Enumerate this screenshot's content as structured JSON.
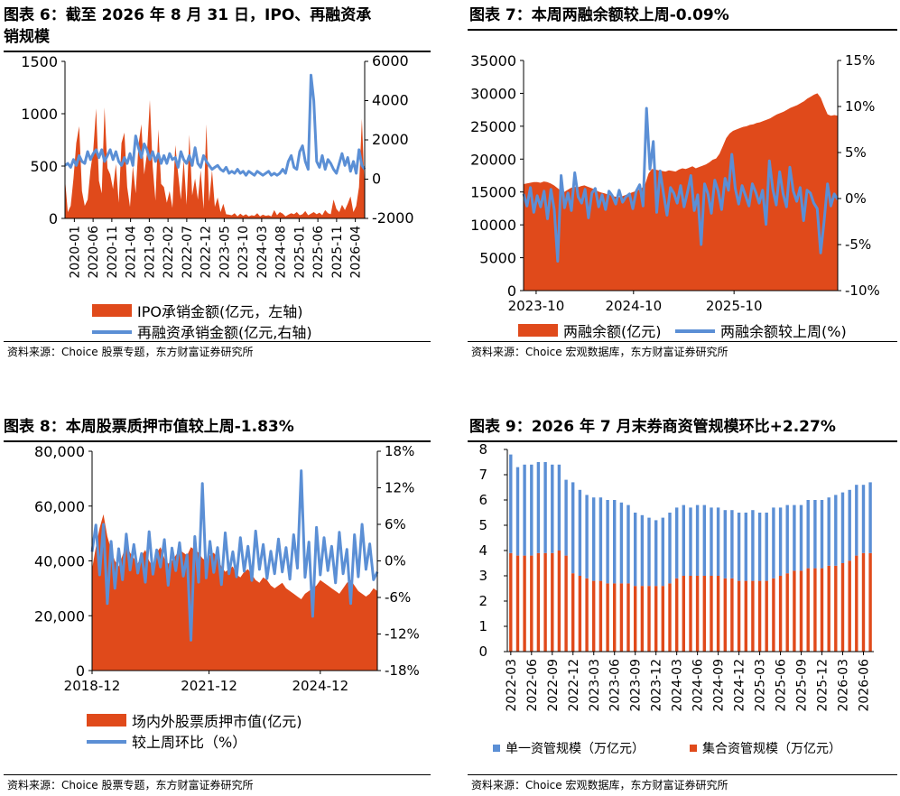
{
  "colors": {
    "area": "#E04A1B",
    "line": "#5B8FD5",
    "ink": "#000000"
  },
  "source_a": "资料来源：Choice 股票专题，东方财富证券研究所",
  "source_b": "资料来源：Choice 宏观数据库，东方财富证券研究所",
  "chart_data": [
    {
      "id": "chart6",
      "type": "area",
      "title": "图表 6：截至 2026 年 8 月 31 日，IPO、再融资承销规模",
      "title_line1": "图表 6：截至 2026 年 8 月 31 日，IPO、再融资承",
      "title_line2": "销规模",
      "x_ticks": [
        "2020-01",
        "2020-06",
        "2020-11",
        "2021-04",
        "2021-09",
        "2022-02",
        "2022-07",
        "2022-12",
        "2023-05",
        "2023-10",
        "2024-03",
        "2024-08",
        "2025-01",
        "2025-06",
        "2025-11",
        "2026-04"
      ],
      "ylim_left": [
        0,
        1500
      ],
      "yticks_left": [
        "0",
        "500",
        "1000",
        "1500"
      ],
      "ylim_right": [
        -2000,
        6000
      ],
      "yticks_right": [
        "-2000",
        "0",
        "2000",
        "4000",
        "6000"
      ],
      "series": [
        {
          "name": "IPO承销金额(亿元，左轴)",
          "axis": "left",
          "kind": "area",
          "values": [
            380,
            60,
            120,
            380,
            720,
            880,
            260,
            120,
            180,
            460,
            650,
            1050,
            360,
            240,
            1060,
            480,
            420,
            280,
            520,
            150,
            720,
            820,
            300,
            110,
            500,
            240,
            700,
            900,
            420,
            620,
            1130,
            500,
            170,
            850,
            330,
            300,
            150,
            260,
            100,
            700,
            430,
            180,
            560,
            130,
            800,
            220,
            380,
            180,
            460,
            90,
            900,
            160,
            460,
            110,
            200,
            60,
            140,
            40,
            35,
            30,
            50,
            20,
            45,
            25,
            40,
            20,
            30,
            25,
            50,
            20,
            35,
            25,
            30,
            20,
            80,
            30,
            60,
            45,
            20,
            35,
            50,
            40,
            60,
            30,
            40,
            70,
            30,
            45,
            60,
            40,
            55,
            30,
            80,
            50,
            40,
            180,
            90,
            60,
            130,
            80,
            140,
            210,
            60,
            120,
            300,
            950,
            260
          ]
        },
        {
          "name": "再融资承销金额(亿元,右轴)",
          "axis": "right",
          "kind": "line",
          "values": [
            700,
            800,
            600,
            1000,
            700,
            1200,
            900,
            800,
            1400,
            1000,
            1300,
            1500,
            1100,
            1500,
            900,
            1200,
            1500,
            1000,
            1400,
            900,
            700,
            1100,
            800,
            1300,
            700,
            2200,
            1600,
            1100,
            1800,
            1500,
            1000,
            1400,
            900,
            1300,
            800,
            1200,
            800,
            1300,
            1000,
            1100,
            600,
            1400,
            1000,
            800,
            1200,
            700,
            1600,
            800,
            600,
            1200,
            900,
            700,
            500,
            600,
            700,
            500,
            400,
            600,
            300,
            400,
            300,
            500,
            300,
            400,
            200,
            400,
            300,
            200,
            400,
            300,
            200,
            300,
            400,
            200,
            300,
            200,
            300,
            500,
            300,
            900,
            1200,
            600,
            500,
            1400,
            1700,
            900,
            500,
            5300,
            4000,
            900,
            600,
            1200,
            500,
            1000,
            800,
            500,
            300,
            800,
            1300,
            700,
            1100,
            400,
            900,
            300,
            1500,
            700,
            500
          ]
        }
      ],
      "legend": [
        "IPO承销金额(亿元，左轴)",
        "再融资承销金额(亿元,右轴)"
      ]
    },
    {
      "id": "chart7",
      "type": "area",
      "title": "图表 7：本周两融余额较上周-0.09%",
      "x_ticks": [
        "2023-10",
        "2024-10",
        "2025-10"
      ],
      "ylim_left": [
        0,
        35000
      ],
      "yticks_left": [
        "0",
        "5000",
        "10000",
        "15000",
        "20000",
        "25000",
        "30000",
        "35000"
      ],
      "ylim_right": [
        -10,
        15
      ],
      "yticks_right": [
        "-10%",
        "-5%",
        "0%",
        "5%",
        "10%",
        "15%"
      ],
      "series": [
        {
          "name": "两融余额(亿元)",
          "axis": "left",
          "kind": "area",
          "values": [
            16200,
            16300,
            16400,
            16500,
            16500,
            16400,
            16600,
            16500,
            16300,
            16000,
            15600,
            15200,
            15000,
            15300,
            15600,
            15800,
            15700,
            15900,
            16000,
            15800,
            15600,
            15400,
            15100,
            14900,
            14800,
            14600,
            14500,
            14300,
            14200,
            14300,
            14500,
            14700,
            14900,
            15100,
            15300,
            15600,
            16200,
            17800,
            18500,
            18400,
            18300,
            18200,
            18100,
            18300,
            18200,
            18100,
            18400,
            18600,
            18500,
            18700,
            18900,
            18600,
            18800,
            19000,
            19200,
            19500,
            19900,
            20100,
            20800,
            22000,
            23200,
            23900,
            24300,
            24500,
            24700,
            24900,
            25000,
            25200,
            25300,
            25500,
            25600,
            25800,
            26000,
            26200,
            26500,
            26800,
            27000,
            27200,
            27500,
            27800,
            28000,
            28200,
            28500,
            28800,
            29200,
            29500,
            29800,
            30000,
            29300,
            28000,
            26800,
            26600,
            26700,
            26600
          ]
        },
        {
          "name": "两融余额较上周(%)",
          "axis": "right",
          "kind": "line",
          "values": [
            0.5,
            -0.8,
            1.2,
            -1.5,
            0.3,
            -0.9,
            0.8,
            -2.2,
            1.0,
            -1.2,
            -6.8,
            2.5,
            -1.0,
            0.6,
            -1.3,
            2.8,
            0.2,
            -0.5,
            1.0,
            -2.1,
            0.6,
            1.1,
            -0.9,
            0.4,
            -1.2,
            0.8,
            0.3,
            -0.6,
            0.9,
            -0.4,
            0.2,
            0.5,
            -1.1,
            0.8,
            1.5,
            -0.8,
            9.8,
            3.2,
            6.2,
            -1.5,
            3.0,
            0.5,
            -1.8,
            1.2,
            0.6,
            -0.5,
            1.4,
            -0.9,
            0.7,
            2.5,
            -1.3,
            0.4,
            -5.0,
            1.6,
            0.5,
            -1.6,
            2.0,
            0.8,
            -1.2,
            2.2,
            0.9,
            4.8,
            1.1,
            -0.6,
            1.4,
            0.3,
            -0.8,
            1.6,
            0.7,
            -0.5,
            0.9,
            -2.8,
            4.1,
            1.0,
            -0.7,
            2.9,
            0.5,
            -0.9,
            3.4,
            0.8,
            -0.3,
            1.2,
            -2.4,
            0.9,
            0.6,
            -0.5,
            -1.1,
            -5.9,
            -2.5,
            1.6,
            -0.8,
            0.5,
            -0.1
          ]
        }
      ],
      "legend": [
        "两融余额(亿元)",
        "两融余额较上周(%)"
      ]
    },
    {
      "id": "chart8",
      "type": "area",
      "title": "图表 8：本周股票质押市值较上周-1.83%",
      "x_ticks": [
        "2018-12",
        "2021-12",
        "2024-12"
      ],
      "ylim_left": [
        0,
        80000
      ],
      "yticks_left": [
        "0",
        "20,000",
        "40,000",
        "60,000",
        "80,000"
      ],
      "ylim_right": [
        -18,
        18
      ],
      "yticks_right": [
        "-18%",
        "-12%",
        "-6%",
        "0%",
        "6%",
        "12%",
        "18%"
      ],
      "series": [
        {
          "name": "场内外股票质押市值(亿元)",
          "axis": "left",
          "kind": "area",
          "values": [
            37000,
            45000,
            52000,
            57000,
            49000,
            44000,
            40000,
            38000,
            42000,
            46000,
            43000,
            41000,
            39000,
            42000,
            44000,
            40000,
            38000,
            43000,
            45000,
            41000,
            39000,
            40000,
            42000,
            44000,
            43000,
            42000,
            45000,
            44000,
            43000,
            41000,
            40000,
            42000,
            43000,
            41000,
            38000,
            36000,
            37000,
            38000,
            35000,
            34000,
            36000,
            37000,
            35000,
            33000,
            32000,
            34000,
            33000,
            31000,
            30000,
            31000,
            32000,
            30000,
            29000,
            28000,
            27000,
            26000,
            28000,
            29000,
            30000,
            31000,
            33000,
            32000,
            31000,
            30000,
            29000,
            28000,
            30000,
            32000,
            33000,
            31000,
            29000,
            28000,
            27000,
            28000,
            30000,
            29000
          ]
        },
        {
          "name": "较上周环比（%）",
          "axis": "right",
          "kind": "line",
          "values": [
            1.5,
            5.9,
            -2.3,
            6.0,
            -7.0,
            3.2,
            -4.5,
            2.0,
            -3.1,
            4.4,
            -1.5,
            2.7,
            -2.0,
            1.2,
            -3.5,
            4.8,
            -2.2,
            1.8,
            -1.0,
            3.5,
            -4.0,
            2.1,
            -1.6,
            3.0,
            -2.5,
            1.0,
            -13.0,
            4.0,
            -3.5,
            12.7,
            -2.8,
            3.2,
            -1.9,
            2.2,
            -3.9,
            4.6,
            -2.1,
            1.5,
            -2.6,
            3.8,
            -1.7,
            2.4,
            -3.2,
            4.9,
            -1.4,
            2.7,
            -2.9,
            1.6,
            -2.1,
            3.6,
            -1.8,
            2.2,
            -3.0,
            4.3,
            -1.2,
            14.8,
            -2.7,
            3.1,
            -9.1,
            5.5,
            -2.3,
            3.8,
            -1.6,
            2.4,
            -3.6,
            4.7,
            -2.1,
            1.9,
            -7.0,
            4.3,
            -2.6,
            6.0,
            -1.4,
            2.8,
            -3.1,
            -1.8
          ]
        }
      ],
      "legend": [
        "场内外股票质押市值(亿元)",
        "较上周环比（%）"
      ]
    },
    {
      "id": "chart9",
      "type": "bar",
      "title": "图表 9：2026 年 7 月末券商资管规模环比+2.27%",
      "categories": [
        "2022-03",
        "2022-04",
        "2022-05",
        "2022-06",
        "2022-07",
        "2022-08",
        "2022-09",
        "2022-10",
        "2022-11",
        "2022-12",
        "2023-01",
        "2023-02",
        "2023-03",
        "2023-04",
        "2023-05",
        "2023-06",
        "2023-07",
        "2023-08",
        "2023-09",
        "2023-10",
        "2023-11",
        "2023-12",
        "2024-01",
        "2024-02",
        "2024-03",
        "2024-04",
        "2024-05",
        "2024-06",
        "2024-07",
        "2024-08",
        "2024-09",
        "2024-10",
        "2024-11",
        "2024-12",
        "2025-01",
        "2025-02",
        "2025-03",
        "2025-04",
        "2025-05",
        "2025-06",
        "2025-07",
        "2025-08",
        "2025-09",
        "2025-10",
        "2025-11",
        "2025-12",
        "2026-01",
        "2026-02",
        "2026-03",
        "2026-04",
        "2026-05",
        "2026-06",
        "2026-07"
      ],
      "x_ticks": [
        "2022-03",
        "2022-06",
        "2022-09",
        "2022-12",
        "2023-03",
        "2023-06",
        "2023-09",
        "2023-12",
        "2024-03",
        "2024-06",
        "2024-09",
        "2024-12",
        "2025-03",
        "2025-06",
        "2025-09",
        "2025-12",
        "2026-03",
        "2026-06"
      ],
      "ylim": [
        0,
        8
      ],
      "yticks": [
        "0",
        "1",
        "2",
        "3",
        "4",
        "5",
        "6",
        "7",
        "8"
      ],
      "series": [
        {
          "name": "单一资管规模（万亿元）",
          "kind": "stack-top",
          "color": "#5B8FD5",
          "values": [
            3.9,
            3.5,
            3.6,
            3.6,
            3.6,
            3.6,
            3.5,
            3.4,
            3.0,
            3.6,
            3.4,
            3.3,
            3.3,
            3.3,
            3.3,
            3.3,
            3.2,
            3.1,
            2.9,
            2.8,
            2.7,
            2.6,
            2.7,
            2.8,
            2.8,
            2.8,
            2.7,
            2.8,
            2.8,
            2.7,
            2.7,
            2.7,
            2.7,
            2.7,
            2.7,
            2.8,
            2.7,
            2.7,
            2.8,
            2.7,
            2.7,
            2.6,
            2.6,
            2.7,
            2.7,
            2.7,
            2.7,
            2.8,
            2.8,
            2.8,
            2.8,
            2.7,
            2.8
          ]
        },
        {
          "name": "集合资管规模（万亿元）",
          "kind": "stack-bottom",
          "color": "#E04A1B",
          "values": [
            3.9,
            3.8,
            3.8,
            3.8,
            3.9,
            3.9,
            3.9,
            4.0,
            3.8,
            3.1,
            3.0,
            2.9,
            2.8,
            2.8,
            2.7,
            2.7,
            2.7,
            2.7,
            2.6,
            2.6,
            2.6,
            2.6,
            2.6,
            2.7,
            2.9,
            3.0,
            3.0,
            3.0,
            3.0,
            3.0,
            3.0,
            2.9,
            2.9,
            2.8,
            2.8,
            2.8,
            2.8,
            2.8,
            2.9,
            3.0,
            3.1,
            3.2,
            3.2,
            3.3,
            3.3,
            3.3,
            3.4,
            3.4,
            3.5,
            3.6,
            3.8,
            3.9,
            3.9
          ]
        }
      ],
      "legend": [
        "单一资管规模（万亿元）",
        "集合资管规模（万亿元）"
      ]
    }
  ]
}
